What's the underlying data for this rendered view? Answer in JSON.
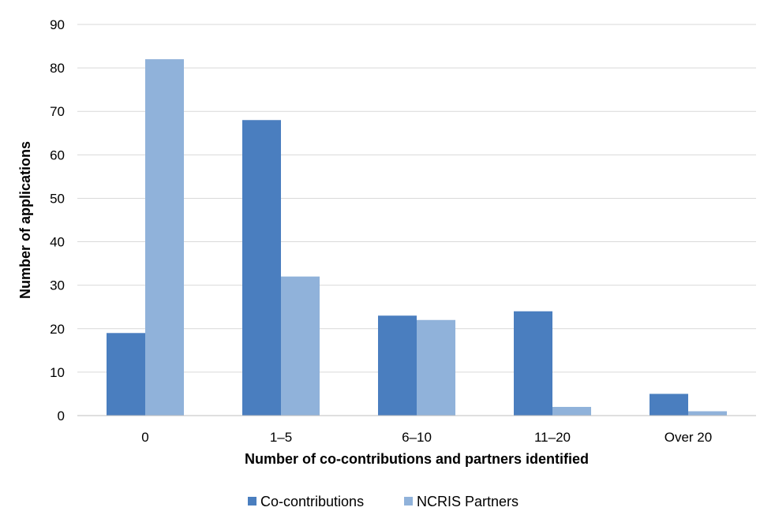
{
  "chart_data": {
    "type": "bar",
    "title": "",
    "xlabel": "Number of co-contributions and partners identified",
    "ylabel": "Number of applications",
    "categories": [
      "0",
      "1–5",
      "6–10",
      "11–20",
      "Over 20"
    ],
    "series": [
      {
        "name": "Co-contributions",
        "values": [
          19,
          68,
          23,
          24,
          5
        ],
        "color": "#4a7ebf"
      },
      {
        "name": "NCRIS Partners",
        "values": [
          82,
          32,
          22,
          2,
          1
        ],
        "color": "#90b2da"
      }
    ],
    "ylim": [
      0,
      90
    ],
    "yticks": [
      0,
      10,
      20,
      30,
      40,
      50,
      60,
      70,
      80,
      90
    ],
    "grid": true,
    "legend": "bottom"
  }
}
